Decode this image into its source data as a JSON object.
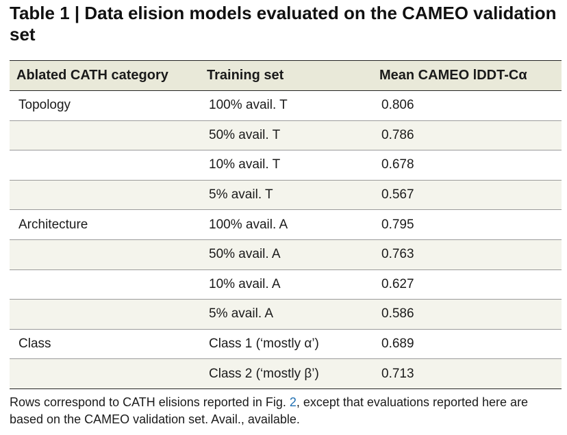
{
  "title": "Table 1 | Data elision models evaluated on the CAMEO validation set",
  "table": {
    "headers": [
      "Ablated CATH category",
      "Training set",
      "Mean CAMEO lDDT-Cα"
    ],
    "rows": [
      {
        "category": "Topology",
        "training_set": "100% avail. T",
        "value": "0.806",
        "shaded": false
      },
      {
        "category": "",
        "training_set": "50% avail. T",
        "value": "0.786",
        "shaded": true
      },
      {
        "category": "",
        "training_set": "10% avail. T",
        "value": "0.678",
        "shaded": false
      },
      {
        "category": "",
        "training_set": "5% avail. T",
        "value": "0.567",
        "shaded": true
      },
      {
        "category": "Architecture",
        "training_set": "100% avail. A",
        "value": "0.795",
        "shaded": false
      },
      {
        "category": "",
        "training_set": "50% avail. A",
        "value": "0.763",
        "shaded": true
      },
      {
        "category": "",
        "training_set": "10% avail. A",
        "value": "0.627",
        "shaded": false
      },
      {
        "category": "",
        "training_set": "5% avail. A",
        "value": "0.586",
        "shaded": true
      },
      {
        "category": "Class",
        "training_set": "Class 1 (‘mostly α’)",
        "value": "0.689",
        "shaded": false
      },
      {
        "category": "",
        "training_set": "Class 2 (‘mostly β’)",
        "value": "0.713",
        "shaded": true
      }
    ]
  },
  "footnote": {
    "before_link": "Rows correspond to CATH elisions reported in Fig. ",
    "link_text": "2",
    "after_link": ", except that evaluations reported here are based on the CAMEO validation set. Avail., available."
  },
  "colors": {
    "header_bg": "#e9e9d9",
    "shaded_row_bg": "#f4f4ec",
    "link": "#1f6fb2"
  }
}
